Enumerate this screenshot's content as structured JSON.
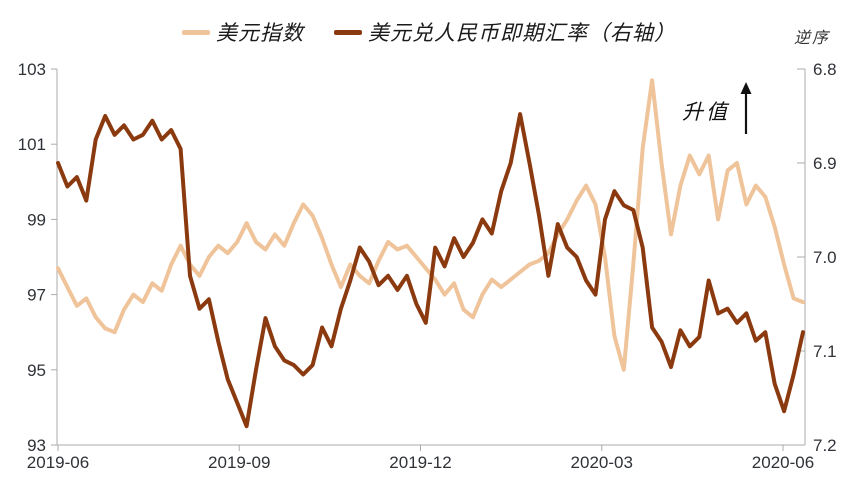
{
  "legend": {
    "items": [
      {
        "label": "美元指数",
        "color": "#F0C49A"
      },
      {
        "label": "美元兑人民币即期汇率（右轴）",
        "color": "#8B3A10"
      }
    ]
  },
  "annotations": {
    "reverse_axis_note": "逆序",
    "appreciation_label": "升值"
  },
  "chart_data": {
    "type": "line",
    "title": "",
    "grid": false,
    "legend_position": "top",
    "x_axis": {
      "tick_labels": [
        "2019-06",
        "2019-09",
        "2019-12",
        "2020-03",
        "2020-06"
      ]
    },
    "left_axis": {
      "series": "美元指数",
      "range": [
        93,
        103
      ],
      "tick_labels": [
        "103",
        "101",
        "99",
        "97",
        "95",
        "93"
      ],
      "tick_values": [
        103,
        101,
        99,
        97,
        95,
        93
      ]
    },
    "right_axis": {
      "series": "美元兑人民币即期汇率",
      "range": [
        6.8,
        7.2
      ],
      "reversed": true,
      "tick_labels": [
        "6.8",
        "6.9",
        "7.0",
        "7.1",
        "7.2"
      ],
      "tick_values": [
        6.8,
        6.9,
        7.0,
        7.1,
        7.2
      ]
    },
    "series": [
      {
        "name": "美元指数",
        "axis": "left",
        "color": "#F0C49A",
        "values": [
          97.7,
          97.2,
          96.7,
          96.9,
          96.4,
          96.1,
          96.0,
          96.6,
          97.0,
          96.8,
          97.3,
          97.1,
          97.8,
          98.3,
          97.8,
          97.5,
          98.0,
          98.3,
          98.1,
          98.4,
          98.9,
          98.4,
          98.2,
          98.6,
          98.3,
          98.9,
          99.4,
          99.1,
          98.5,
          97.8,
          97.2,
          97.8,
          97.5,
          97.3,
          97.9,
          98.4,
          98.2,
          98.3,
          98.0,
          97.7,
          97.4,
          97.0,
          97.3,
          96.6,
          96.4,
          97.0,
          97.4,
          97.2,
          97.4,
          97.6,
          97.8,
          97.9,
          98.1,
          98.6,
          99.0,
          99.5,
          99.9,
          99.4,
          98.0,
          95.9,
          95.0,
          97.8,
          100.9,
          102.7,
          100.5,
          98.6,
          99.9,
          100.7,
          100.2,
          100.7,
          99.0,
          100.3,
          100.5,
          99.4,
          99.9,
          99.6,
          98.8,
          97.8,
          96.9,
          96.8
        ]
      },
      {
        "name": "美元兑人民币即期汇率（右轴）",
        "axis": "right",
        "color": "#8B3A10",
        "values": [
          6.9,
          6.925,
          6.915,
          6.94,
          6.875,
          6.85,
          6.87,
          6.86,
          6.875,
          6.87,
          6.855,
          6.875,
          6.865,
          6.885,
          7.02,
          7.055,
          7.045,
          7.09,
          7.13,
          7.155,
          7.18,
          7.12,
          7.065,
          7.095,
          7.11,
          7.115,
          7.125,
          7.115,
          7.075,
          7.095,
          7.055,
          7.025,
          6.99,
          7.005,
          7.03,
          7.02,
          7.035,
          7.02,
          7.05,
          7.07,
          6.99,
          7.01,
          6.98,
          7.0,
          6.985,
          6.96,
          6.975,
          6.93,
          6.9,
          6.848,
          6.9,
          6.955,
          7.02,
          6.965,
          6.99,
          7.0,
          7.025,
          7.04,
          6.96,
          6.93,
          6.945,
          6.95,
          6.99,
          7.075,
          7.09,
          7.117,
          7.078,
          7.095,
          7.085,
          7.025,
          7.06,
          7.055,
          7.07,
          7.06,
          7.089,
          7.08,
          7.135,
          7.164,
          7.125,
          7.08
        ]
      }
    ]
  }
}
